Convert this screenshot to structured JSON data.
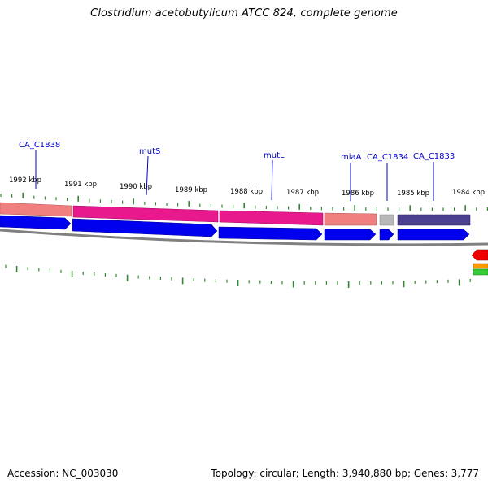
{
  "title": "Clostridium acetobutylicum ATCC 824, complete genome",
  "footer": {
    "accession": "Accession: NC_003030",
    "summary": "Topology: circular; Length: 3,940,880 bp; Genes: 3,777"
  },
  "scale": {
    "labels": [
      "1992 kbp",
      "1991 kbp",
      "1990 kbp",
      "1989 kbp",
      "1988 kbp",
      "1987 kbp",
      "1986 kbp",
      "1985 kbp",
      "1984 kbp"
    ]
  },
  "genes": [
    {
      "name": "CA_C1838"
    },
    {
      "name": "mutS"
    },
    {
      "name": "mutL"
    },
    {
      "name": "miaA"
    },
    {
      "name": "CA_C1834"
    },
    {
      "name": "CA_C1833"
    }
  ],
  "colors": {
    "cds_light": "#f08080",
    "cds_magenta": "#e8198c",
    "cds_grey": "#b8b8b8",
    "cds_purple": "#4b3f8f",
    "gene_blue": "#0000ee",
    "backbone": "#808080",
    "tick": "#2e8b2e",
    "label_blue": "#0000cc"
  }
}
